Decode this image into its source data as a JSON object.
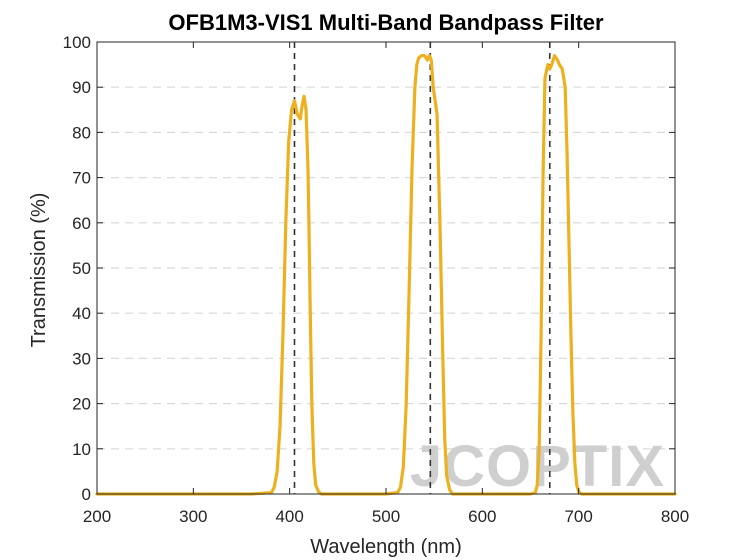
{
  "chart_data": {
    "type": "line",
    "title": "OFB1M3-VIS1 Multi-Band Bandpass Filter",
    "xlabel": "Wavelength (nm)",
    "ylabel": "Transmission (%)",
    "xlim": [
      200,
      800
    ],
    "ylim": [
      0,
      100
    ],
    "xticks": [
      200,
      300,
      400,
      500,
      600,
      700,
      800
    ],
    "yticks": [
      0,
      10,
      20,
      30,
      40,
      50,
      60,
      70,
      80,
      90,
      100
    ],
    "grid": "horizontal dashed",
    "series": [
      {
        "color": "#EDB120",
        "x": [
          200,
          360,
          381,
          384,
          387,
          390,
          393,
          396,
          399,
          402,
          405,
          408,
          411,
          413,
          415,
          417,
          419,
          420,
          421,
          423,
          425,
          427,
          430,
          433,
          450,
          500,
          512,
          515,
          518,
          521,
          524,
          527,
          530,
          532,
          534,
          537,
          540,
          543,
          545,
          547,
          549,
          551,
          553,
          556,
          559,
          561,
          563,
          566,
          569,
          580,
          630,
          650,
          655,
          657,
          659,
          661,
          663,
          665,
          668,
          670,
          672,
          675,
          678,
          680,
          683,
          686,
          688,
          690,
          692,
          694,
          696,
          698,
          700,
          703,
          710,
          800
        ],
        "y": [
          0,
          0,
          0.3,
          1.5,
          5,
          15,
          35,
          60,
          78,
          85,
          87,
          84,
          83,
          86,
          88,
          85,
          72,
          60,
          45,
          20,
          7,
          2,
          0.5,
          0,
          0,
          0,
          0.3,
          1.5,
          6,
          20,
          45,
          72,
          90,
          95,
          96.5,
          97,
          97,
          96,
          97,
          96,
          90,
          87,
          84,
          60,
          30,
          12,
          4,
          1,
          0,
          0,
          0,
          0,
          0.3,
          2,
          10,
          35,
          70,
          92,
          95,
          94,
          95,
          97,
          96,
          95,
          94,
          90,
          75,
          55,
          35,
          18,
          7,
          2,
          0.5,
          0,
          0,
          0
        ]
      }
    ],
    "reference_lines_x": [
      405,
      546,
      670
    ],
    "watermark": "JCOPTIX"
  }
}
